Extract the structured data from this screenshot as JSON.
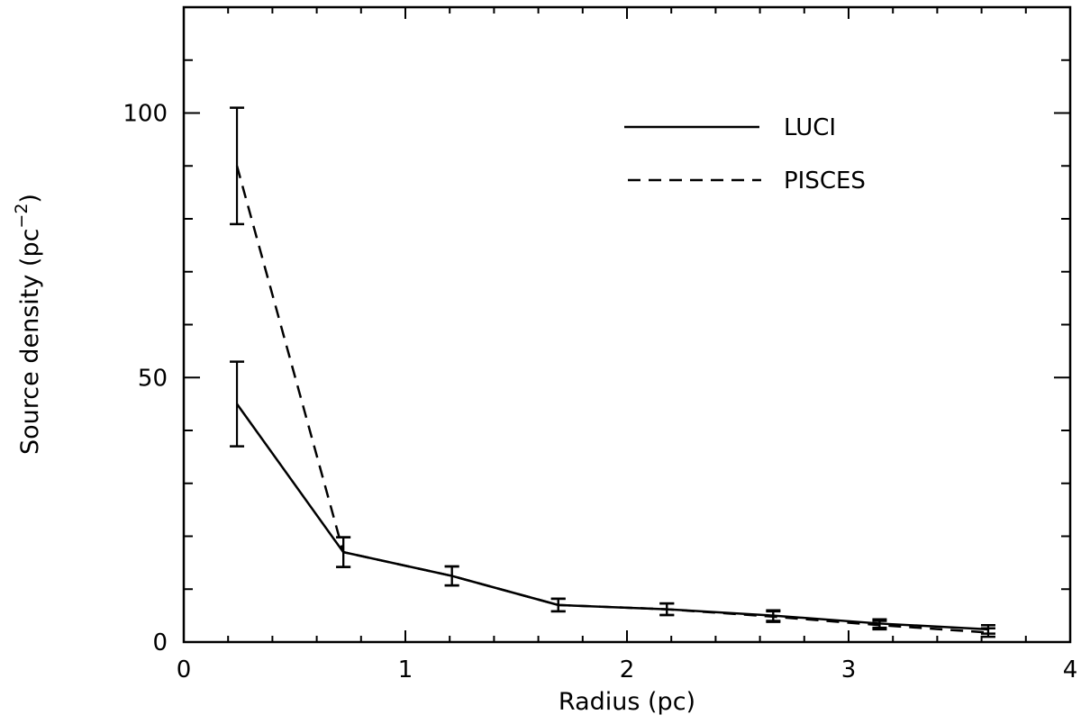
{
  "chart_data": {
    "type": "line",
    "title": "",
    "xlabel": "Radius (pc)",
    "ylabel_main": "Source density (pc",
    "ylabel_sup": "−2",
    "ylabel_close": ")",
    "xlim": [
      0,
      4
    ],
    "ylim": [
      0,
      120
    ],
    "x_ticks": [
      0,
      1,
      2,
      3,
      4
    ],
    "x_tick_labels": [
      "0",
      "1",
      "2",
      "3",
      "4"
    ],
    "x_minor_step": 0.2,
    "y_ticks": [
      0,
      50,
      100
    ],
    "y_tick_labels": [
      "0",
      "50",
      "100"
    ],
    "y_minor_step": 10,
    "grid": false,
    "legend_position": "top-right",
    "series": [
      {
        "name": "LUCI",
        "style": "solid",
        "x": [
          0.24,
          0.72,
          1.21,
          1.69,
          2.18,
          2.66,
          3.14,
          3.63
        ],
        "y": [
          45.0,
          17.0,
          12.5,
          7.0,
          6.2,
          5.0,
          3.5,
          2.4
        ],
        "err": [
          8.0,
          2.8,
          1.8,
          1.2,
          1.1,
          1.0,
          0.8,
          0.8
        ]
      },
      {
        "name": "PISCES",
        "style": "dashed",
        "x": [
          0.24,
          0.72,
          1.21,
          1.69,
          2.18,
          2.66,
          3.14,
          3.63
        ],
        "y": [
          90.0,
          17.0,
          12.5,
          7.0,
          6.2,
          4.8,
          3.2,
          1.8
        ],
        "err": [
          11.0,
          2.8,
          1.8,
          1.2,
          1.1,
          1.0,
          0.8,
          0.8
        ]
      }
    ]
  }
}
